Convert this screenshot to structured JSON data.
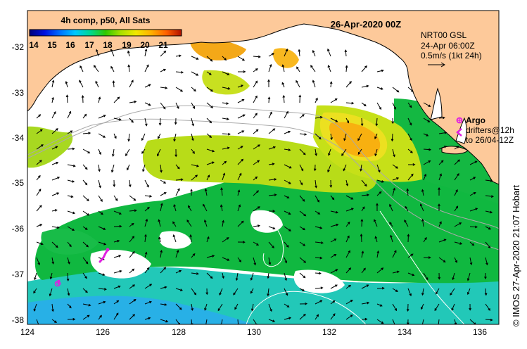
{
  "header": {
    "date_title": "26-Apr-2020 00Z",
    "colorbar_title": "4h comp, p50, All Sats"
  },
  "colorbar": {
    "labels": [
      "14",
      "15",
      "16",
      "17",
      "18",
      "19",
      "20",
      "21"
    ],
    "colors": [
      "#00007a",
      "#0000d0",
      "#0060ff",
      "#00c0ff",
      "#00d890",
      "#40d000",
      "#c0e000",
      "#ffd000",
      "#ff9000",
      "#ff5000",
      "#c01000"
    ]
  },
  "current_legend": {
    "line1": "NRT00 GSL",
    "line2": "24-Apr 06:00Z",
    "line3": "0.5m/s (1kt 24h)"
  },
  "drifter_legend": {
    "argo_label": "Argo",
    "drifters_line1": "drifters@12h",
    "drifters_line2": "to 26/04-12Z"
  },
  "axes": {
    "x_ticks": [
      "124",
      "126",
      "128",
      "130",
      "132",
      "134",
      "136"
    ],
    "y_ticks": [
      "-32",
      "-33",
      "-34",
      "-35",
      "-36",
      "-37",
      "-38"
    ]
  },
  "credit": "© IMOS 27-Apr-2020 21:07 Hobart",
  "colors": {
    "land": "#fdc99a",
    "frame": "#000000",
    "argo": "#e020e0"
  }
}
